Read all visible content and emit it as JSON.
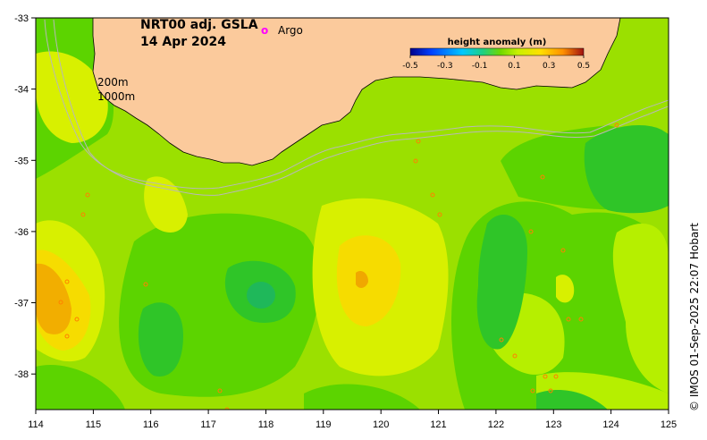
{
  "map": {
    "title_line1": "NRT00 adj. GSLA",
    "title_line2": "14 Apr 2024",
    "argo_symbol": "o",
    "argo_label": "Argo",
    "isobath_200": "200m",
    "isobath_1000": "1000m",
    "credit": "© IMOS 01-Sep-2025 22:07 Hobart",
    "x_ticks": [
      "114",
      "115",
      "116",
      "117",
      "118",
      "119",
      "120",
      "121",
      "122",
      "123",
      "124",
      "125"
    ],
    "y_ticks": [
      "-33",
      "-34",
      "-35",
      "-36",
      "-37",
      "-38"
    ],
    "colorbar": {
      "title": "height anomaly (m)",
      "ticks": [
        "-0.5",
        "-0.3",
        "-0.1",
        "0.1",
        "0.3",
        "0.5"
      ],
      "colors": [
        "#00008b",
        "#0040ff",
        "#00c0ff",
        "#20d080",
        "#40c020",
        "#b0f000",
        "#ffe000",
        "#ff9000",
        "#d03000",
        "#800000"
      ]
    },
    "colors": {
      "land": "#fbca9c",
      "ocean_base": "#9be000",
      "argo_marker": "#ff00ff",
      "isobath_line": "#b8b8b8"
    }
  }
}
